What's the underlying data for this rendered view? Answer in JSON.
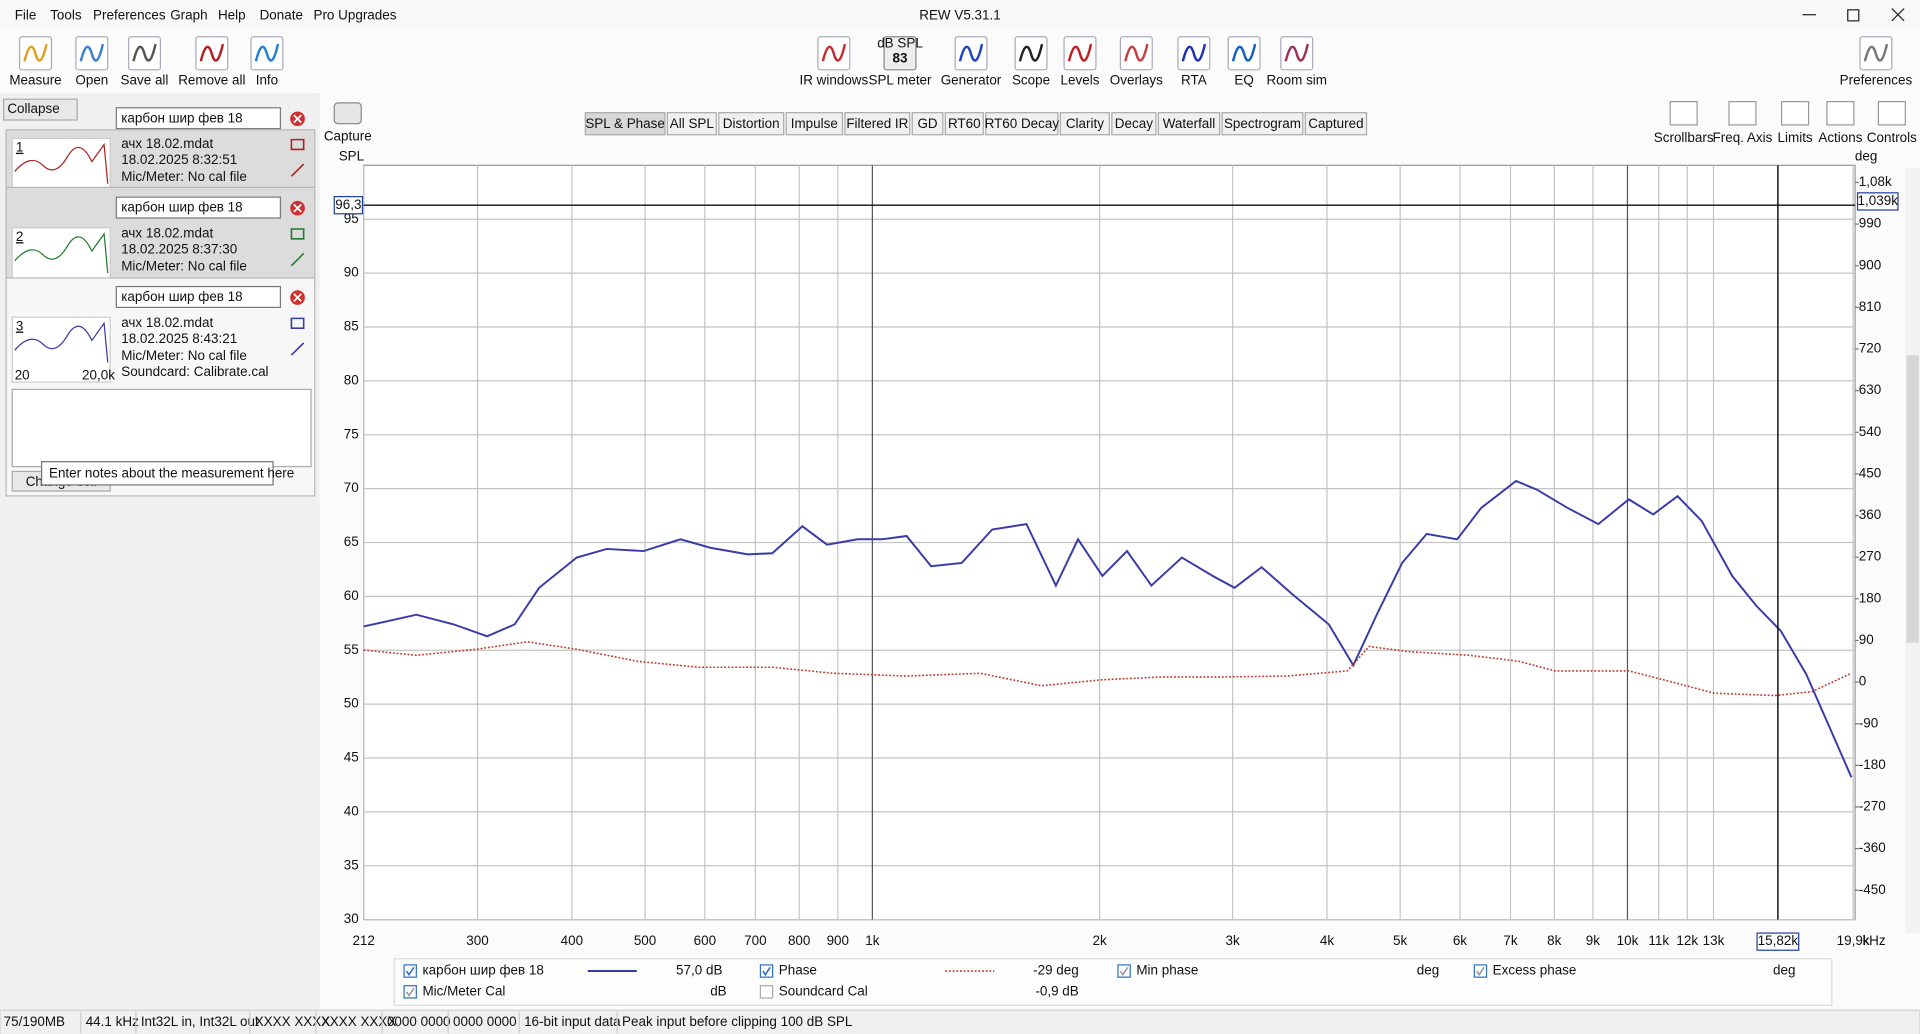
{
  "window_title": "REW V5.31.1",
  "menu": [
    "File",
    "Tools",
    "Preferences",
    "Graph",
    "Help",
    "Donate",
    "Pro Upgrades"
  ],
  "toolbar_left": [
    "Measure",
    "Open",
    "Save all",
    "Remove all",
    "Info"
  ],
  "toolbar_center": [
    "IR windows",
    "SPL meter",
    "Generator",
    "Scope",
    "Levels",
    "Overlays",
    "RTA",
    "EQ",
    "Room sim"
  ],
  "spl_meter_icon": {
    "unit": "dB SPL",
    "reading": "83"
  },
  "toolbar_right": "Preferences",
  "left_panel": {
    "collapse": "Collapse",
    "measurements": [
      {
        "index": "1",
        "name": "карбон шир фев 18",
        "file": "ачх 18.02.mdat",
        "date": "18.02.2025 8:32:51",
        "mic": "Mic/Meter: No cal file"
      },
      {
        "index": "2",
        "name": "карбон шир фев 18",
        "file": "ачх 18.02.mdat",
        "date": "18.02.2025 8:37:30",
        "mic": "Mic/Meter: No cal file"
      },
      {
        "index": "3",
        "name": "карбон шир фев 18",
        "file": "ачх 18.02.mdat",
        "date": "18.02.2025 8:43:21",
        "mic": "Mic/Meter: No cal file",
        "soundcard": "Soundcard: Calibrate.cal"
      }
    ],
    "thumb_axis": [
      "20",
      "20,0k"
    ],
    "button": "Change coll",
    "tooltip": "Enter notes about the measurement here"
  },
  "capture": "Capture",
  "tabs": [
    "SPL & Phase",
    "All SPL",
    "Distortion",
    "Impulse",
    "Filtered IR",
    "GD",
    "RT60",
    "RT60 Decay",
    "Clarity",
    "Decay",
    "Waterfall",
    "Spectrogram",
    "Captured"
  ],
  "graph_controls": [
    "Scrollbars",
    "Freq. Axis",
    "Limits",
    "Actions",
    "Controls"
  ],
  "chart_data": {
    "type": "line",
    "y_label": "SPL",
    "y2_label": "deg",
    "x_unit": "kHz",
    "log_x": true,
    "grid": true,
    "xlim": [
      212,
      20020
    ],
    "ylim": [
      30,
      100
    ],
    "y2lim": [
      -513.5,
      1117
    ],
    "xticks": [
      212,
      300,
      400,
      500,
      600,
      700,
      800,
      900,
      {
        "value": 1000,
        "label": "1k"
      },
      {
        "value": 2000,
        "label": "2k"
      },
      {
        "value": 3000,
        "label": "3k"
      },
      {
        "value": 4000,
        "label": "4k"
      },
      {
        "value": 5000,
        "label": "5k"
      },
      {
        "value": 6000,
        "label": "6k"
      },
      {
        "value": 7000,
        "label": "7k"
      },
      {
        "value": 8000,
        "label": "8k"
      },
      {
        "value": 9000,
        "label": "9k"
      },
      {
        "value": 10000,
        "label": "10k"
      },
      {
        "value": 11000,
        "label": "11k"
      },
      {
        "value": 12000,
        "label": "12k"
      },
      {
        "value": 13000,
        "label": "13k"
      },
      {
        "value": 19900,
        "label": "19,9k"
      }
    ],
    "yticks": [
      30,
      35,
      40,
      45,
      50,
      55,
      60,
      65,
      70,
      75,
      80,
      85,
      90,
      95
    ],
    "y2ticks": [
      -450,
      -360,
      -270,
      -180,
      -90,
      0,
      90,
      180,
      270,
      360,
      450,
      540,
      630,
      720,
      810,
      900,
      990,
      {
        "value": 1080,
        "label": "1,08k"
      }
    ],
    "series": [
      {
        "name": "карбон шир фев 18",
        "color": "#3a3aa8",
        "x": [
          212,
          249,
          279,
          309,
          336,
          362,
          406,
          445,
          498,
          557,
          611,
          684,
          737,
          808,
          871,
          956,
          1030,
          1110,
          1196,
          1313,
          1441,
          1600,
          1750,
          1872,
          2017,
          2174,
          2342,
          2570,
          2822,
          3017,
          3277,
          3597,
          4023,
          4335,
          4670,
          5030,
          5420,
          5950,
          6400,
          7120,
          7590,
          8330,
          9150,
          10040,
          10815,
          11650,
          12540,
          13760,
          14820,
          15960,
          17240,
          18560,
          19800
        ],
        "values": [
          57.2,
          58.3,
          57.4,
          56.3,
          57.4,
          60.8,
          63.6,
          64.4,
          64.2,
          65.3,
          64.5,
          63.9,
          64.0,
          66.5,
          64.8,
          65.3,
          65.3,
          65.6,
          62.8,
          63.1,
          66.2,
          66.7,
          61.0,
          65.3,
          61.9,
          64.2,
          61.0,
          63.6,
          61.9,
          60.8,
          62.7,
          60.2,
          57.4,
          53.6,
          58.5,
          63.1,
          65.8,
          65.3,
          68.2,
          70.7,
          69.9,
          68.2,
          66.7,
          69.0,
          67.6,
          69.3,
          67.0,
          61.9,
          59.1,
          56.8,
          52.8,
          47.7,
          43.2
        ]
      },
      {
        "name": "Phase",
        "color": "#c0392b",
        "axis": "y2",
        "line_style": "dotted",
        "x": [
          212,
          249,
          299,
          349,
          406,
          488,
          588,
          737,
          887,
          1110,
          1389,
          1674,
          2017,
          2430,
          2930,
          3530,
          4255,
          4550,
          5120,
          6170,
          7175,
          8020,
          10040,
          11650,
          13020,
          15680,
          17540,
          19800
        ],
        "values": [
          69,
          58,
          71,
          87,
          71,
          45,
          32,
          32,
          19,
          13,
          19,
          -8,
          5,
          11,
          11,
          13,
          24,
          77,
          66,
          58,
          45,
          24,
          24,
          -3,
          -24,
          -29,
          -21,
          19
        ]
      }
    ],
    "cursor": {
      "spl": {
        "value": 96.3,
        "label": "96,3"
      },
      "freq": {
        "value": 15820,
        "label": "15,82k"
      },
      "phase": {
        "value": 1039,
        "label": "1,039k"
      }
    }
  },
  "legend": {
    "spl_reading": "57,0 dB",
    "phase_reading": "-29 deg",
    "min_phase": "Min phase",
    "min_phase_unit": "deg",
    "excess_phase": "Excess phase",
    "excess_phase_unit": "deg",
    "mic_cal": "Mic/Meter Cal",
    "mic_cal_unit": "dB",
    "soundcard_cal": "Soundcard Cal",
    "soundcard_cal_value": "-0,9 dB"
  },
  "status": [
    "75/190MB",
    "44.1 kHz",
    "Int32L in, Int32L out",
    "XXXX XXXX",
    "XXXX XXXX",
    "0000 0000",
    "0000 0000",
    "16-bit input data",
    "Peak input before clipping 100 dB SPL"
  ]
}
